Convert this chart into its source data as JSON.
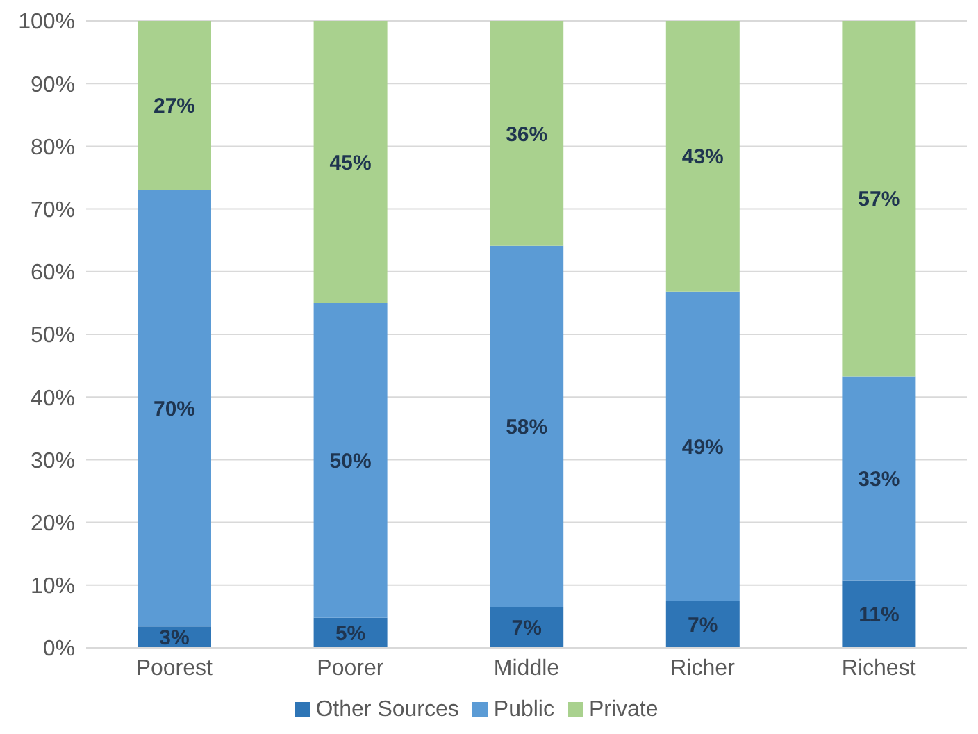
{
  "chart_data": {
    "type": "bar",
    "stacked": true,
    "categories": [
      "Poorest",
      "Poorer",
      "Middle",
      "Richer",
      "Richest"
    ],
    "series": [
      {
        "name": "Other Sources",
        "color": "#2e75b6",
        "values": [
          3.4,
          4.8,
          6.5,
          7.5,
          10.7
        ],
        "value_labels": [
          "3%",
          "5%",
          "7%",
          "7%",
          "11%"
        ]
      },
      {
        "name": "Public",
        "color": "#5b9bd5",
        "values": [
          69.6,
          50.2,
          57.6,
          49.3,
          32.6
        ],
        "value_labels": [
          "70%",
          "50%",
          "58%",
          "49%",
          "33%"
        ]
      },
      {
        "name": "Private",
        "color": "#a9d18e",
        "values": [
          27,
          45,
          35.9,
          43.2,
          56.7
        ],
        "value_labels": [
          "27%",
          "45%",
          "36%",
          "43%",
          "57%"
        ]
      }
    ],
    "ylim": [
      0,
      100
    ],
    "yticks": [
      {
        "value": 0,
        "label": "0%"
      },
      {
        "value": 10,
        "label": "10%"
      },
      {
        "value": 20,
        "label": "20%"
      },
      {
        "value": 30,
        "label": "30%"
      },
      {
        "value": 40,
        "label": "40%"
      },
      {
        "value": 50,
        "label": "50%"
      },
      {
        "value": 60,
        "label": "60%"
      },
      {
        "value": 70,
        "label": "70%"
      },
      {
        "value": 80,
        "label": "80%"
      },
      {
        "value": 90,
        "label": "90%"
      },
      {
        "value": 100,
        "label": "100%"
      }
    ],
    "grid": "y",
    "legend": "bottom"
  }
}
